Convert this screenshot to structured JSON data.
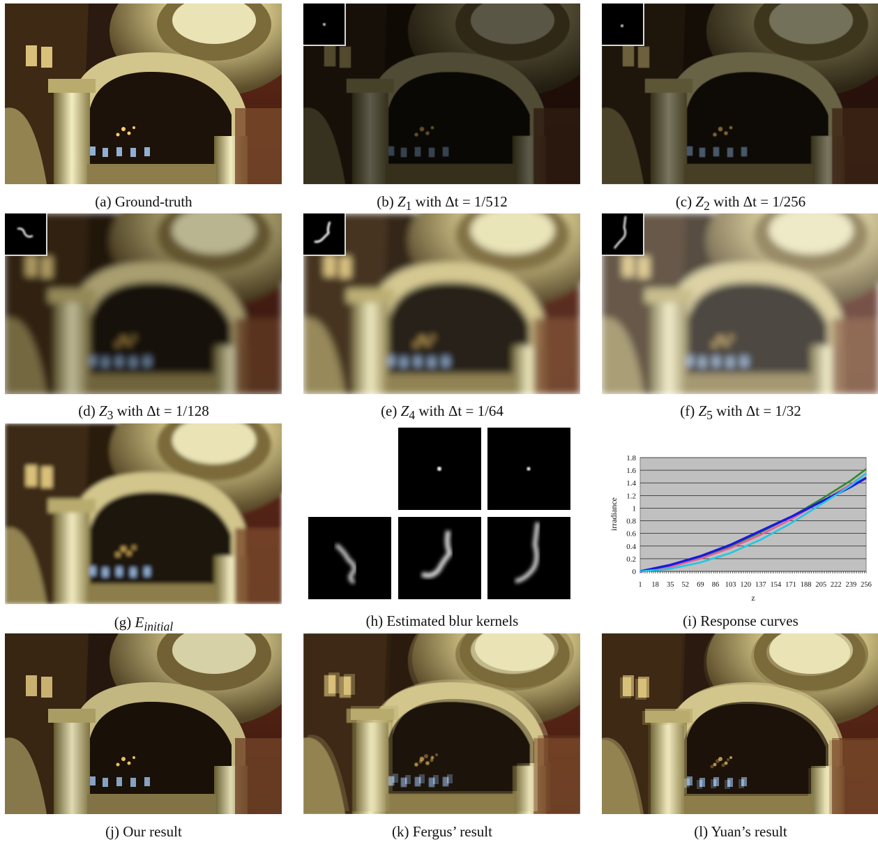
{
  "figure": {
    "panels": [
      {
        "id": "a",
        "label": "(a)",
        "text": "Ground-truth"
      },
      {
        "id": "b",
        "label": "(b)",
        "sym": "Z",
        "sub": "1",
        "mid": " with ",
        "eq": "Δt = 1/512"
      },
      {
        "id": "c",
        "label": "(c)",
        "sym": "Z",
        "sub": "2",
        "mid": " with ",
        "eq": "Δt = 1/256"
      },
      {
        "id": "d",
        "label": "(d)",
        "sym": "Z",
        "sub": "3",
        "mid": " with ",
        "eq": "Δt = 1/128"
      },
      {
        "id": "e",
        "label": "(e)",
        "sym": "Z",
        "sub": "4",
        "mid": " with ",
        "eq": "Δt = 1/64"
      },
      {
        "id": "f",
        "label": "(f)",
        "sym": "Z",
        "sub": "5",
        "mid": " with ",
        "eq": "Δt = 1/32"
      },
      {
        "id": "g",
        "label": "(g)",
        "sym": "E",
        "sub": "initial"
      },
      {
        "id": "h",
        "label": "(h)",
        "text": "Estimated blur kernels"
      },
      {
        "id": "i",
        "label": "(i)",
        "text": "Response curves"
      },
      {
        "id": "j",
        "label": "(j)",
        "text": "Our result"
      },
      {
        "id": "k",
        "label": "(k)",
        "text": "Fergus’ result"
      },
      {
        "id": "l",
        "label": "(l)",
        "text": "Yuan’s result"
      }
    ]
  },
  "chart_data": {
    "type": "line",
    "title": "",
    "xlabel": "z",
    "ylabel": "irradiance",
    "x_ticks": [
      "1",
      "18",
      "35",
      "52",
      "69",
      "86",
      "103",
      "120",
      "137",
      "154",
      "171",
      "188",
      "205",
      "222",
      "239",
      "256"
    ],
    "y_ticks": [
      "0",
      "0.2",
      "0.4",
      "0.6",
      "0.8",
      "1",
      "1.2",
      "1.4",
      "1.6",
      "1.8"
    ],
    "xlim": [
      1,
      256
    ],
    "ylim": [
      0,
      1.8
    ],
    "grid": true,
    "background": "#c0c0c0",
    "series": [
      {
        "color": "#2e8b2e",
        "x": [
          1,
          35,
          69,
          103,
          137,
          171,
          205,
          239,
          256
        ],
        "y": [
          0,
          0.08,
          0.22,
          0.4,
          0.62,
          0.86,
          1.14,
          1.44,
          1.62
        ]
      },
      {
        "color": "#e060a0",
        "x": [
          1,
          35,
          69,
          103,
          137,
          171,
          205,
          239,
          256
        ],
        "y": [
          0,
          0.07,
          0.2,
          0.37,
          0.58,
          0.82,
          1.1,
          1.38,
          1.55
        ]
      },
      {
        "color": "#1a1ae0",
        "x": [
          1,
          35,
          69,
          103,
          137,
          171,
          205,
          239,
          256
        ],
        "y": [
          0,
          0.1,
          0.24,
          0.42,
          0.64,
          0.86,
          1.1,
          1.34,
          1.48
        ]
      },
      {
        "color": "#20c8e0",
        "x": [
          1,
          35,
          69,
          103,
          137,
          171,
          205,
          239,
          256
        ],
        "y": [
          0,
          0.04,
          0.14,
          0.29,
          0.5,
          0.76,
          1.06,
          1.36,
          1.55
        ]
      }
    ]
  }
}
